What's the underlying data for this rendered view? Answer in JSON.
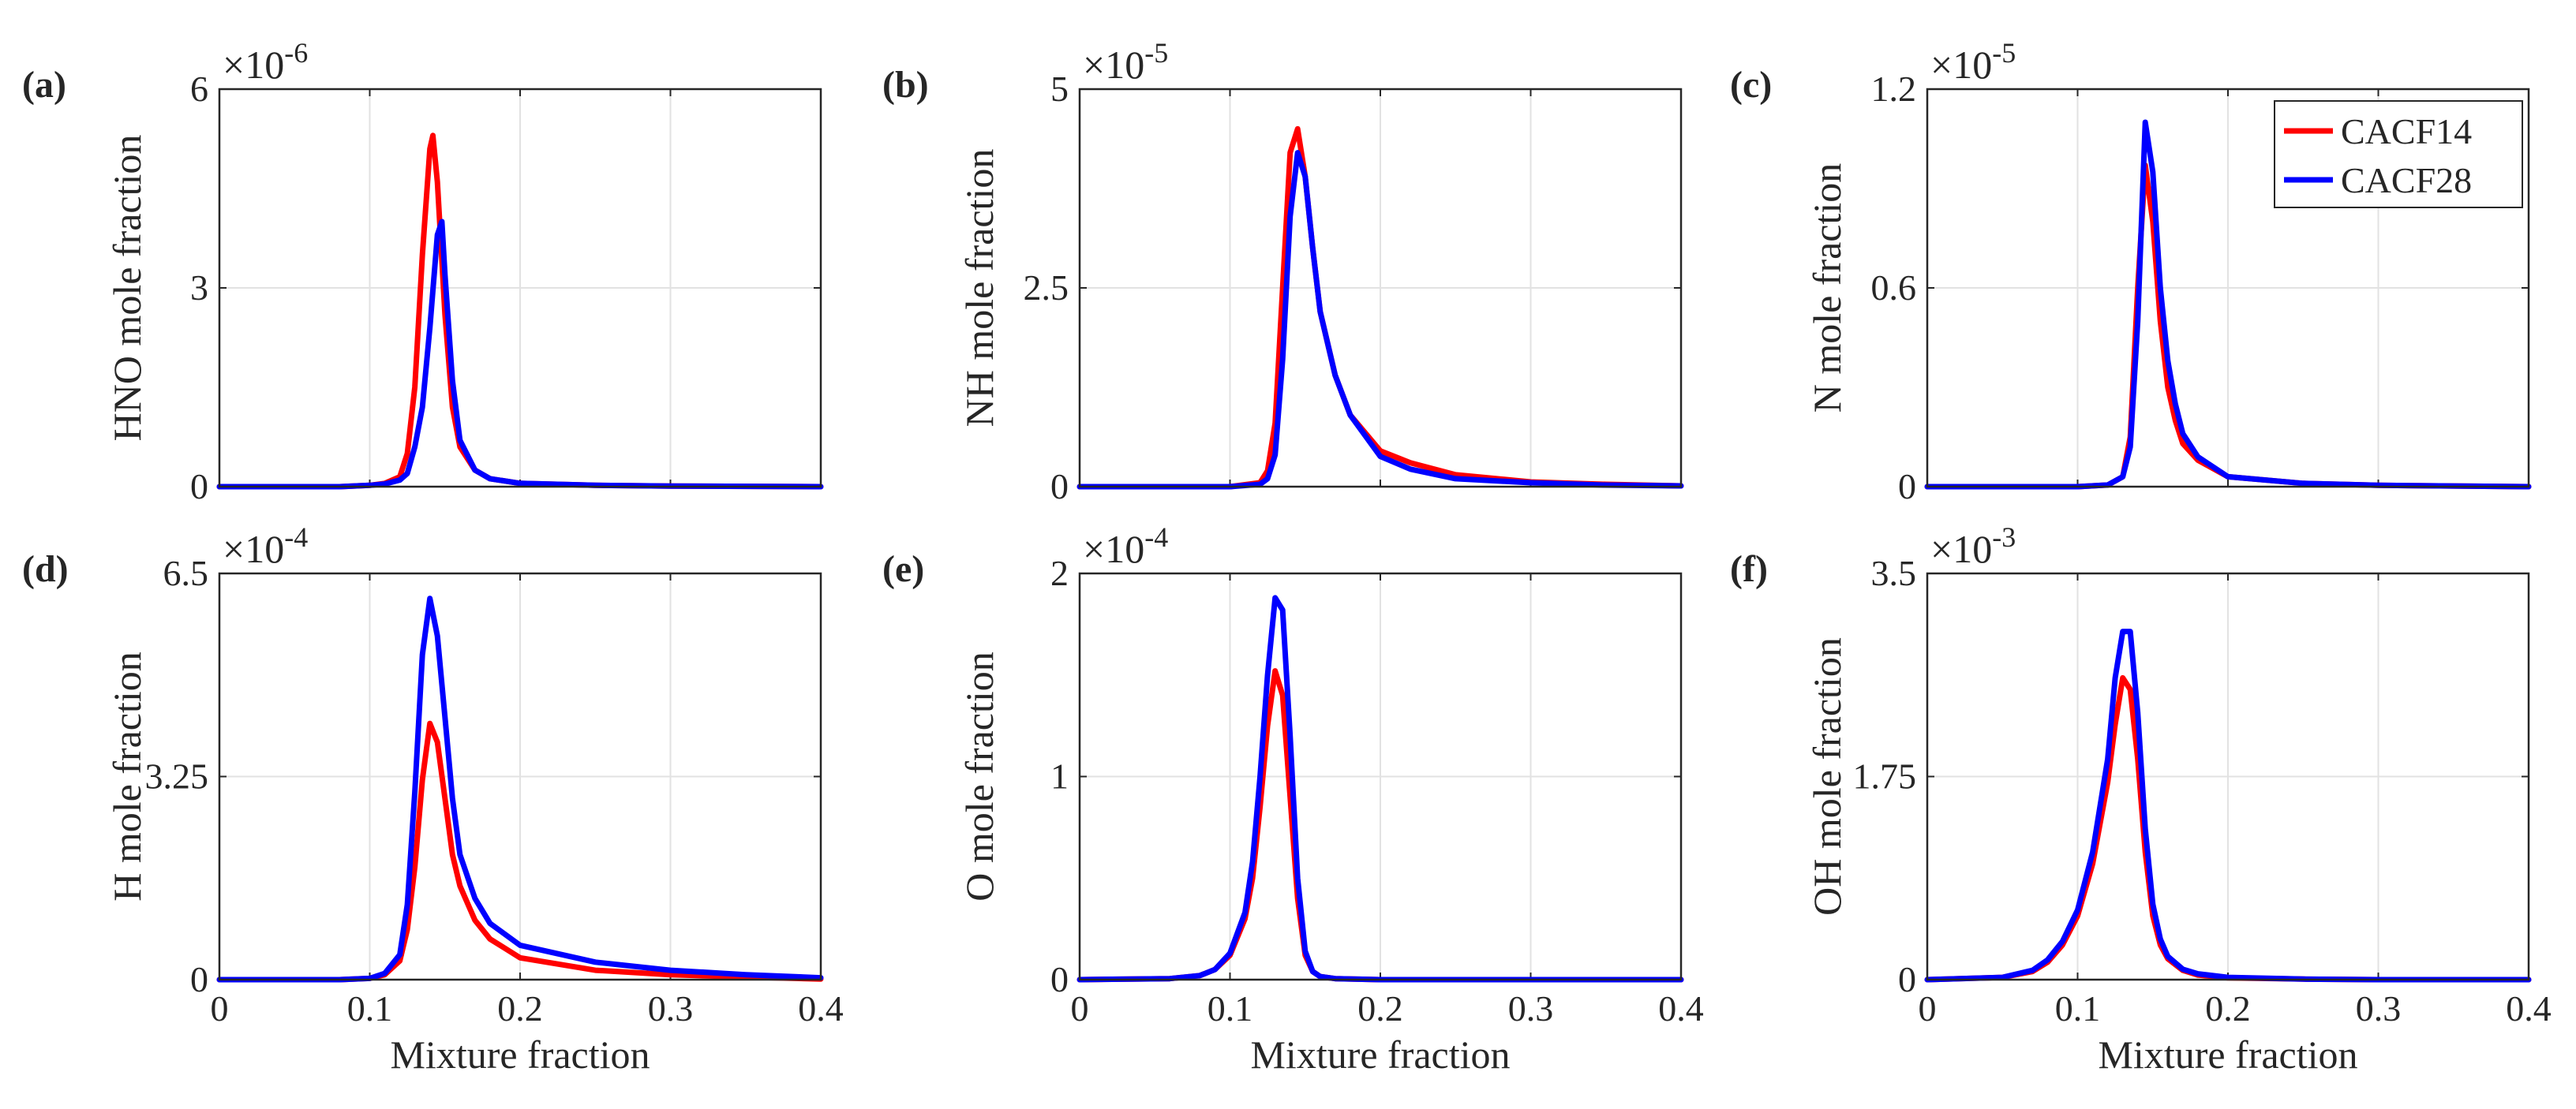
{
  "figure": {
    "shared_xlabel": "Mixture fraction",
    "legend": [
      {
        "label": "CACF14",
        "color": "#ff0000"
      },
      {
        "label": "CACF28",
        "color": "#0000ff"
      }
    ]
  },
  "chart_data": [
    {
      "type": "line",
      "panel": "(a)",
      "ylabel": "HNO mole fraction",
      "xlabel": "",
      "exponent": "-6",
      "xlim": [
        0,
        0.4
      ],
      "ylim": [
        0,
        6
      ],
      "xticks": [
        0,
        0.1,
        0.2,
        0.3,
        0.4
      ],
      "xtick_labels": [
        "0",
        "0.1",
        "0.2",
        "0.3",
        "0.4"
      ],
      "yticks": [
        0,
        3,
        6
      ],
      "ytick_labels": [
        "0",
        "3",
        "6"
      ],
      "grid": true,
      "show_xtick_labels": false,
      "show_legend": false,
      "series": [
        {
          "name": "CACF14",
          "color": "#ff0000",
          "x": [
            0,
            0.08,
            0.1,
            0.11,
            0.12,
            0.125,
            0.13,
            0.135,
            0.14,
            0.142,
            0.145,
            0.15,
            0.155,
            0.16,
            0.17,
            0.18,
            0.2,
            0.25,
            0.3,
            0.4
          ],
          "y": [
            0,
            0,
            0.02,
            0.05,
            0.15,
            0.5,
            1.5,
            3.5,
            5.1,
            5.3,
            4.6,
            2.6,
            1.2,
            0.6,
            0.25,
            0.12,
            0.05,
            0.02,
            0.01,
            0
          ]
        },
        {
          "name": "CACF28",
          "color": "#0000ff",
          "x": [
            0,
            0.08,
            0.1,
            0.11,
            0.12,
            0.125,
            0.13,
            0.135,
            0.14,
            0.145,
            0.148,
            0.15,
            0.155,
            0.16,
            0.17,
            0.18,
            0.2,
            0.25,
            0.3,
            0.4
          ],
          "y": [
            0,
            0,
            0.02,
            0.04,
            0.1,
            0.2,
            0.6,
            1.2,
            2.4,
            3.8,
            4.0,
            3.2,
            1.6,
            0.7,
            0.25,
            0.12,
            0.05,
            0.02,
            0.01,
            0
          ]
        }
      ]
    },
    {
      "type": "line",
      "panel": "(b)",
      "ylabel": "NH mole fraction",
      "xlabel": "",
      "exponent": "-5",
      "xlim": [
        0,
        0.4
      ],
      "ylim": [
        0,
        5
      ],
      "xticks": [
        0,
        0.1,
        0.2,
        0.3,
        0.4
      ],
      "xtick_labels": [
        "0",
        "0.1",
        "0.2",
        "0.3",
        "0.4"
      ],
      "yticks": [
        0,
        2.5,
        5
      ],
      "ytick_labels": [
        "0",
        "2.5",
        "5"
      ],
      "grid": true,
      "show_xtick_labels": false,
      "show_legend": false,
      "series": [
        {
          "name": "CACF14",
          "color": "#ff0000",
          "x": [
            0,
            0.1,
            0.12,
            0.125,
            0.13,
            0.135,
            0.14,
            0.145,
            0.15,
            0.155,
            0.16,
            0.17,
            0.18,
            0.2,
            0.22,
            0.25,
            0.3,
            0.35,
            0.4
          ],
          "y": [
            0,
            0,
            0.05,
            0.2,
            0.8,
            2.5,
            4.2,
            4.5,
            3.9,
            3.0,
            2.2,
            1.4,
            0.9,
            0.45,
            0.3,
            0.15,
            0.06,
            0.03,
            0.01
          ]
        },
        {
          "name": "CACF28",
          "color": "#0000ff",
          "x": [
            0,
            0.1,
            0.12,
            0.125,
            0.13,
            0.135,
            0.14,
            0.145,
            0.15,
            0.155,
            0.16,
            0.17,
            0.18,
            0.2,
            0.22,
            0.25,
            0.3,
            0.35,
            0.4
          ],
          "y": [
            0,
            0,
            0.03,
            0.1,
            0.4,
            1.6,
            3.4,
            4.2,
            3.9,
            3.0,
            2.2,
            1.4,
            0.9,
            0.38,
            0.22,
            0.1,
            0.05,
            0.02,
            0.01
          ]
        }
      ]
    },
    {
      "type": "line",
      "panel": "(c)",
      "ylabel": "N mole fraction",
      "xlabel": "",
      "exponent": "-5",
      "xlim": [
        0,
        0.4
      ],
      "ylim": [
        0,
        1.2
      ],
      "xticks": [
        0,
        0.1,
        0.2,
        0.3,
        0.4
      ],
      "xtick_labels": [
        "0",
        "0.1",
        "0.2",
        "0.3",
        "0.4"
      ],
      "yticks": [
        0,
        0.6,
        1.2
      ],
      "ytick_labels": [
        "0",
        "0.6",
        "1.2"
      ],
      "grid": true,
      "show_xtick_labels": false,
      "show_legend": true,
      "series": [
        {
          "name": "CACF14",
          "color": "#ff0000",
          "x": [
            0,
            0.1,
            0.12,
            0.13,
            0.135,
            0.14,
            0.145,
            0.15,
            0.155,
            0.16,
            0.165,
            0.17,
            0.18,
            0.2,
            0.25,
            0.3,
            0.4
          ],
          "y": [
            0,
            0,
            0.005,
            0.03,
            0.15,
            0.6,
            0.97,
            0.8,
            0.5,
            0.3,
            0.2,
            0.13,
            0.08,
            0.03,
            0.01,
            0.004,
            0
          ]
        },
        {
          "name": "CACF28",
          "color": "#0000ff",
          "x": [
            0,
            0.1,
            0.12,
            0.13,
            0.135,
            0.14,
            0.145,
            0.15,
            0.155,
            0.16,
            0.165,
            0.17,
            0.18,
            0.2,
            0.25,
            0.3,
            0.4
          ],
          "y": [
            0,
            0,
            0.005,
            0.03,
            0.12,
            0.5,
            1.1,
            0.95,
            0.6,
            0.38,
            0.25,
            0.16,
            0.09,
            0.03,
            0.01,
            0.004,
            0
          ]
        }
      ]
    },
    {
      "type": "line",
      "panel": "(d)",
      "ylabel": "H mole fraction",
      "xlabel": "Mixture fraction",
      "exponent": "-4",
      "xlim": [
        0,
        0.4
      ],
      "ylim": [
        0,
        6.5
      ],
      "xticks": [
        0,
        0.1,
        0.2,
        0.3,
        0.4
      ],
      "xtick_labels": [
        "0",
        "0.1",
        "0.2",
        "0.3",
        "0.4"
      ],
      "yticks": [
        0,
        3.25,
        6.5
      ],
      "ytick_labels": [
        "0",
        "3.25",
        "6.5"
      ],
      "grid": true,
      "show_xtick_labels": true,
      "show_legend": false,
      "series": [
        {
          "name": "CACF14",
          "color": "#ff0000",
          "x": [
            0,
            0.08,
            0.1,
            0.11,
            0.12,
            0.125,
            0.13,
            0.135,
            0.14,
            0.145,
            0.15,
            0.155,
            0.16,
            0.17,
            0.18,
            0.2,
            0.25,
            0.3,
            0.35,
            0.4
          ],
          "y": [
            0,
            0,
            0.02,
            0.08,
            0.3,
            0.8,
            1.8,
            3.2,
            4.1,
            3.8,
            2.9,
            2.0,
            1.5,
            0.95,
            0.65,
            0.35,
            0.15,
            0.08,
            0.04,
            0.01
          ]
        },
        {
          "name": "CACF28",
          "color": "#0000ff",
          "x": [
            0,
            0.08,
            0.1,
            0.11,
            0.12,
            0.125,
            0.13,
            0.135,
            0.14,
            0.145,
            0.15,
            0.155,
            0.16,
            0.17,
            0.18,
            0.2,
            0.25,
            0.3,
            0.35,
            0.4
          ],
          "y": [
            0,
            0,
            0.02,
            0.1,
            0.4,
            1.2,
            3.0,
            5.2,
            6.1,
            5.5,
            4.2,
            2.9,
            2.0,
            1.3,
            0.9,
            0.55,
            0.28,
            0.15,
            0.08,
            0.03
          ]
        }
      ]
    },
    {
      "type": "line",
      "panel": "(e)",
      "ylabel": "O mole fraction",
      "xlabel": "Mixture fraction",
      "exponent": "-4",
      "xlim": [
        0,
        0.4
      ],
      "ylim": [
        0,
        2
      ],
      "xticks": [
        0,
        0.1,
        0.2,
        0.3,
        0.4
      ],
      "xtick_labels": [
        "0",
        "0.1",
        "0.2",
        "0.3",
        "0.4"
      ],
      "yticks": [
        0,
        1,
        2
      ],
      "ytick_labels": [
        "0",
        "1",
        "2"
      ],
      "grid": true,
      "show_xtick_labels": true,
      "show_legend": false,
      "series": [
        {
          "name": "CACF14",
          "color": "#ff0000",
          "x": [
            0,
            0.06,
            0.08,
            0.09,
            0.1,
            0.11,
            0.115,
            0.12,
            0.125,
            0.13,
            0.135,
            0.14,
            0.145,
            0.15,
            0.155,
            0.16,
            0.17,
            0.2,
            0.3,
            0.4
          ],
          "y": [
            0,
            0.005,
            0.02,
            0.05,
            0.12,
            0.3,
            0.5,
            0.85,
            1.25,
            1.52,
            1.4,
            0.9,
            0.4,
            0.12,
            0.04,
            0.015,
            0.005,
            0,
            0,
            0
          ]
        },
        {
          "name": "CACF28",
          "color": "#0000ff",
          "x": [
            0,
            0.06,
            0.08,
            0.09,
            0.1,
            0.11,
            0.115,
            0.12,
            0.125,
            0.13,
            0.135,
            0.14,
            0.145,
            0.15,
            0.155,
            0.16,
            0.17,
            0.2,
            0.3,
            0.4
          ],
          "y": [
            0,
            0.005,
            0.02,
            0.05,
            0.13,
            0.33,
            0.58,
            1.0,
            1.5,
            1.88,
            1.82,
            1.2,
            0.5,
            0.14,
            0.04,
            0.015,
            0.005,
            0,
            0,
            0
          ]
        }
      ]
    },
    {
      "type": "line",
      "panel": "(f)",
      "ylabel": "OH mole fraction",
      "xlabel": "Mixture fraction",
      "exponent": "-3",
      "xlim": [
        0,
        0.4
      ],
      "ylim": [
        0,
        3.5
      ],
      "xticks": [
        0,
        0.1,
        0.2,
        0.3,
        0.4
      ],
      "xtick_labels": [
        "0",
        "0.1",
        "0.2",
        "0.3",
        "0.4"
      ],
      "yticks": [
        0,
        1.75,
        3.5
      ],
      "ytick_labels": [
        "0",
        "1.75",
        "3.5"
      ],
      "grid": true,
      "show_xtick_labels": true,
      "show_legend": false,
      "series": [
        {
          "name": "CACF14",
          "color": "#ff0000",
          "x": [
            0,
            0.05,
            0.07,
            0.08,
            0.09,
            0.1,
            0.11,
            0.12,
            0.125,
            0.13,
            0.135,
            0.14,
            0.145,
            0.15,
            0.155,
            0.16,
            0.17,
            0.18,
            0.2,
            0.25,
            0.3,
            0.4
          ],
          "y": [
            0,
            0.02,
            0.07,
            0.15,
            0.3,
            0.55,
            1.0,
            1.7,
            2.2,
            2.6,
            2.5,
            1.9,
            1.1,
            0.55,
            0.3,
            0.18,
            0.08,
            0.04,
            0.015,
            0.005,
            0,
            0
          ]
        },
        {
          "name": "CACF28",
          "color": "#0000ff",
          "x": [
            0,
            0.05,
            0.07,
            0.08,
            0.09,
            0.1,
            0.11,
            0.12,
            0.125,
            0.13,
            0.135,
            0.14,
            0.145,
            0.15,
            0.155,
            0.16,
            0.17,
            0.18,
            0.2,
            0.25,
            0.3,
            0.4
          ],
          "y": [
            0,
            0.02,
            0.08,
            0.17,
            0.33,
            0.6,
            1.1,
            1.9,
            2.6,
            3.0,
            3.0,
            2.3,
            1.3,
            0.65,
            0.35,
            0.2,
            0.09,
            0.05,
            0.02,
            0.005,
            0,
            0
          ]
        }
      ]
    }
  ]
}
